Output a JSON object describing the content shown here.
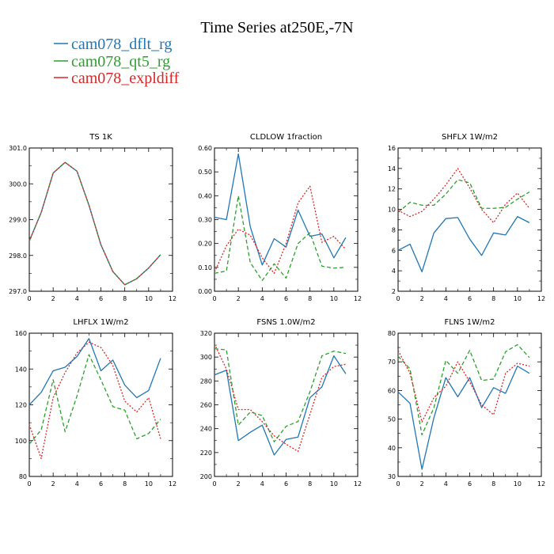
{
  "title": "Time Series at250E,-7N",
  "legend": [
    {
      "name": "cam078_dflt_rg",
      "color": "#1f77b4"
    },
    {
      "name": "cam078_qt5_rg",
      "color": "#2ca02c"
    },
    {
      "name": "cam078_expldiff",
      "color": "#d62728"
    }
  ],
  "chart_data": [
    {
      "type": "line",
      "title": "TS   1K",
      "x": [
        0,
        1,
        2,
        3,
        4,
        5,
        6,
        7,
        8,
        9,
        10,
        11
      ],
      "xlim": [
        0,
        12
      ],
      "ylim": [
        297.0,
        301.0
      ],
      "xticks": [
        "0",
        "2",
        "4",
        "6",
        "8",
        "10",
        "12"
      ],
      "yticks": [
        "297.0",
        "298.0",
        "299.0",
        "300.0",
        "301.0"
      ],
      "series": [
        {
          "name": "cam078_dflt_rg",
          "color": "#1f77b4",
          "dash": "solid",
          "values": [
            298.4,
            299.2,
            300.3,
            300.6,
            300.35,
            299.4,
            298.3,
            297.55,
            297.18,
            297.35,
            297.65,
            298.02
          ]
        },
        {
          "name": "cam078_qt5_rg",
          "color": "#2ca02c",
          "dash": "dashed",
          "values": [
            298.4,
            299.2,
            300.3,
            300.6,
            300.35,
            299.4,
            298.3,
            297.55,
            297.18,
            297.35,
            297.65,
            298.02
          ]
        },
        {
          "name": "cam078_expldiff",
          "color": "#d62728",
          "dash": "dotted",
          "values": [
            298.4,
            299.2,
            300.3,
            300.6,
            300.35,
            299.4,
            298.3,
            297.55,
            297.18,
            297.35,
            297.65,
            298.02
          ]
        }
      ]
    },
    {
      "type": "line",
      "title": "CLDLOW   1fraction",
      "x": [
        0,
        1,
        2,
        3,
        4,
        5,
        6,
        7,
        8,
        9,
        10,
        11
      ],
      "xlim": [
        0,
        12
      ],
      "ylim": [
        0.0,
        0.6
      ],
      "xticks": [
        "0",
        "2",
        "4",
        "6",
        "8",
        "10",
        "12"
      ],
      "yticks": [
        "0.00",
        "0.10",
        "0.20",
        "0.30",
        "0.40",
        "0.50",
        "0.60"
      ],
      "series": [
        {
          "name": "cam078_dflt_rg",
          "color": "#1f77b4",
          "dash": "solid",
          "values": [
            0.31,
            0.3,
            0.575,
            0.27,
            0.11,
            0.22,
            0.185,
            0.34,
            0.23,
            0.24,
            0.14,
            0.225
          ]
        },
        {
          "name": "cam078_qt5_rg",
          "color": "#2ca02c",
          "dash": "dashed",
          "values": [
            0.075,
            0.085,
            0.4,
            0.12,
            0.045,
            0.115,
            0.055,
            0.2,
            0.245,
            0.105,
            0.097,
            0.1
          ]
        },
        {
          "name": "cam078_expldiff",
          "color": "#d62728",
          "dash": "dotted",
          "values": [
            0.08,
            0.19,
            0.26,
            0.235,
            0.14,
            0.075,
            0.2,
            0.37,
            0.44,
            0.205,
            0.23,
            0.175
          ]
        }
      ]
    },
    {
      "type": "line",
      "title": "SHFLX   1W/m2",
      "x": [
        0,
        1,
        2,
        3,
        4,
        5,
        6,
        7,
        8,
        9,
        10,
        11
      ],
      "xlim": [
        0,
        12
      ],
      "ylim": [
        2,
        16
      ],
      "xticks": [
        "0",
        "2",
        "4",
        "6",
        "8",
        "10",
        "12"
      ],
      "yticks": [
        "2",
        "4",
        "6",
        "8",
        "10",
        "12",
        "14",
        "16"
      ],
      "series": [
        {
          "name": "cam078_dflt_rg",
          "color": "#1f77b4",
          "dash": "solid",
          "values": [
            6.0,
            6.6,
            3.9,
            7.7,
            9.1,
            9.2,
            7.1,
            5.5,
            7.7,
            7.5,
            9.3,
            8.7
          ]
        },
        {
          "name": "cam078_qt5_rg",
          "color": "#2ca02c",
          "dash": "dashed",
          "values": [
            9.7,
            10.7,
            10.4,
            10.4,
            11.5,
            12.9,
            12.6,
            10.1,
            10.1,
            10.2,
            11.0,
            11.7
          ]
        },
        {
          "name": "cam078_expldiff",
          "color": "#d62728",
          "dash": "dotted",
          "values": [
            9.9,
            9.3,
            9.8,
            11.0,
            12.4,
            14.0,
            12.1,
            10.0,
            8.7,
            10.5,
            11.6,
            10.1
          ]
        }
      ]
    },
    {
      "type": "line",
      "title": "LHFLX   1W/m2",
      "x": [
        0,
        1,
        2,
        3,
        4,
        5,
        6,
        7,
        8,
        9,
        10,
        11
      ],
      "xlim": [
        0,
        12
      ],
      "ylim": [
        80,
        160
      ],
      "xticks": [
        "0",
        "2",
        "4",
        "6",
        "8",
        "10",
        "12"
      ],
      "yticks": [
        "80",
        "100",
        "120",
        "140",
        "160"
      ],
      "series": [
        {
          "name": "cam078_dflt_rg",
          "color": "#1f77b4",
          "dash": "solid",
          "values": [
            120,
            127,
            139,
            141,
            147,
            157,
            139,
            145,
            131,
            124,
            128,
            146
          ]
        },
        {
          "name": "cam078_qt5_rg",
          "color": "#2ca02c",
          "dash": "dashed",
          "values": [
            98,
            106,
            134,
            105,
            125,
            148,
            134,
            119,
            117,
            101,
            104,
            112
          ]
        },
        {
          "name": "cam078_expldiff",
          "color": "#d62728",
          "dash": "dotted",
          "values": [
            109,
            90,
            124,
            138,
            149,
            155,
            152,
            142,
            122,
            116,
            124,
            101
          ]
        }
      ]
    },
    {
      "type": "line",
      "title": "FSNS   1.0W/m2",
      "x": [
        0,
        1,
        2,
        3,
        4,
        5,
        6,
        7,
        8,
        9,
        10,
        11
      ],
      "xlim": [
        0,
        12
      ],
      "ylim": [
        200,
        320
      ],
      "xticks": [
        "0",
        "2",
        "4",
        "6",
        "8",
        "10",
        "12"
      ],
      "yticks": [
        "200",
        "220",
        "240",
        "260",
        "280",
        "300",
        "320"
      ],
      "series": [
        {
          "name": "cam078_dflt_rg",
          "color": "#1f77b4",
          "dash": "solid",
          "values": [
            285,
            289,
            230,
            237,
            243,
            218,
            231,
            233,
            266,
            275,
            301,
            286
          ]
        },
        {
          "name": "cam078_qt5_rg",
          "color": "#2ca02c",
          "dash": "dashed",
          "values": [
            307,
            306,
            243,
            254,
            251,
            229,
            242,
            246,
            271,
            301,
            305,
            303
          ]
        },
        {
          "name": "cam078_expldiff",
          "color": "#d62728",
          "dash": "dotted",
          "values": [
            311,
            290,
            256,
            256,
            246,
            234,
            227,
            221,
            252,
            283,
            292,
            294
          ]
        }
      ]
    },
    {
      "type": "line",
      "title": "FLNS   1W/m2",
      "x": [
        0,
        1,
        2,
        3,
        4,
        5,
        6,
        7,
        8,
        9,
        10,
        11
      ],
      "xlim": [
        0,
        12
      ],
      "ylim": [
        30,
        80
      ],
      "xticks": [
        "0",
        "2",
        "4",
        "6",
        "8",
        "10",
        "12"
      ],
      "yticks": [
        "30",
        "40",
        "50",
        "60",
        "70",
        "80"
      ],
      "series": [
        {
          "name": "cam078_dflt_rg",
          "color": "#1f77b4",
          "dash": "solid",
          "values": [
            59.5,
            55.5,
            32.5,
            50.5,
            64.5,
            57.8,
            64.5,
            54,
            61,
            59,
            68.5,
            66
          ]
        },
        {
          "name": "cam078_qt5_rg",
          "color": "#2ca02c",
          "dash": "dashed",
          "values": [
            72,
            67.5,
            44.5,
            54,
            70.5,
            66,
            74,
            63.5,
            64,
            73.5,
            76,
            71.5
          ]
        },
        {
          "name": "cam078_expldiff",
          "color": "#d62728",
          "dash": "dotted",
          "values": [
            74,
            66,
            49,
            57.5,
            61.5,
            70,
            63,
            55,
            51.5,
            66,
            69.5,
            68.5
          ]
        }
      ]
    }
  ]
}
